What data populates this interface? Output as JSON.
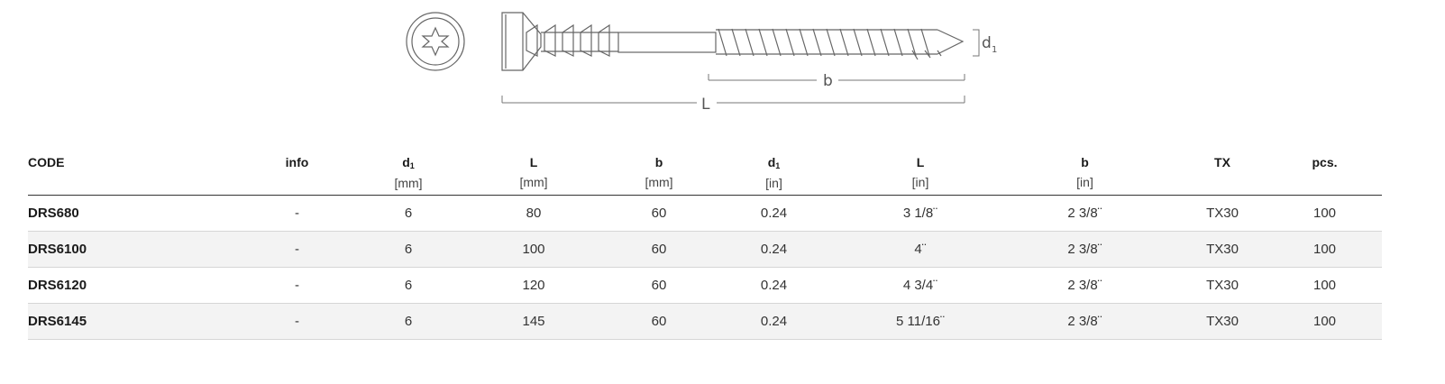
{
  "diagram": {
    "labels": {
      "d1": "d",
      "d1_sub": "1",
      "b": "b",
      "L": "L"
    }
  },
  "table": {
    "columns": [
      {
        "main": "CODE",
        "sub": "",
        "unit": ""
      },
      {
        "main": "info",
        "sub": "",
        "unit": ""
      },
      {
        "main": "d",
        "sub": "1",
        "unit": "[mm]"
      },
      {
        "main": "L",
        "sub": "",
        "unit": "[mm]"
      },
      {
        "main": "b",
        "sub": "",
        "unit": "[mm]"
      },
      {
        "main": "d",
        "sub": "1",
        "unit": "[in]"
      },
      {
        "main": "L",
        "sub": "",
        "unit": "[in]"
      },
      {
        "main": "b",
        "sub": "",
        "unit": "[in]"
      },
      {
        "main": "TX",
        "sub": "",
        "unit": ""
      },
      {
        "main": "pcs.",
        "sub": "",
        "unit": ""
      }
    ],
    "rows": [
      [
        "DRS680",
        "-",
        "6",
        "80",
        "60",
        "0.24",
        "3 1/8¨",
        "2 3/8¨",
        "TX30",
        "100"
      ],
      [
        "DRS6100",
        "-",
        "6",
        "100",
        "60",
        "0.24",
        "4¨",
        "2 3/8¨",
        "TX30",
        "100"
      ],
      [
        "DRS6120",
        "-",
        "6",
        "120",
        "60",
        "0.24",
        "4 3/4¨",
        "2 3/8¨",
        "TX30",
        "100"
      ],
      [
        "DRS6145",
        "-",
        "6",
        "145",
        "60",
        "0.24",
        "5 11/16¨",
        "2 3/8¨",
        "TX30",
        "100"
      ]
    ]
  }
}
